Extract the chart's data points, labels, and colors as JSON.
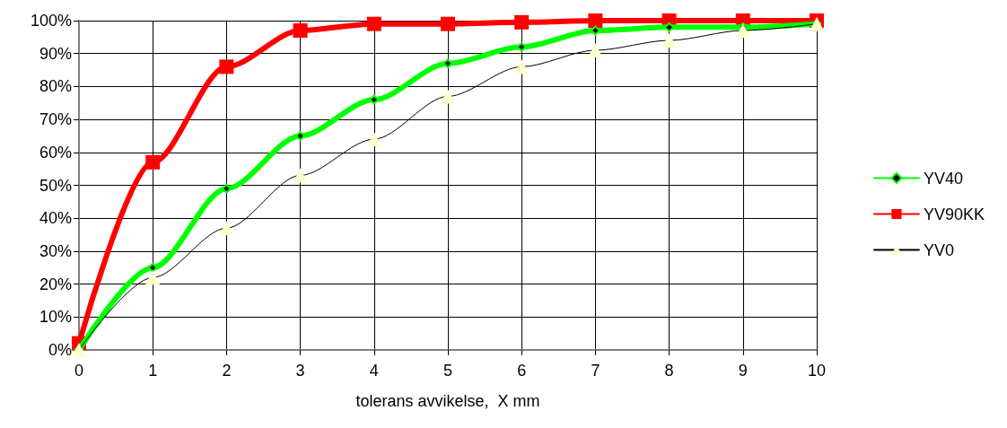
{
  "chart_data": {
    "type": "line",
    "xlabel": "tolerans avvikelse,  X mm",
    "x": [
      0,
      1,
      2,
      3,
      4,
      5,
      6,
      7,
      8,
      9,
      10
    ],
    "series": [
      {
        "name": "YV40",
        "color": "#00ff00",
        "marker": "diamond",
        "values": [
          0,
          25,
          49,
          65,
          76,
          87,
          92,
          97,
          98,
          98,
          99
        ]
      },
      {
        "name": "YV90KK",
        "color": "#ff0000",
        "marker": "square",
        "values": [
          2,
          57,
          86,
          97,
          99,
          99,
          99.5,
          100,
          100,
          100,
          100
        ]
      },
      {
        "name": "YV0",
        "color": "#000000",
        "marker": "triangle",
        "values": [
          0,
          22,
          37,
          53,
          64,
          77,
          86,
          91,
          94,
          97,
          99
        ]
      }
    ],
    "xlim": [
      0,
      10
    ],
    "xticks": [
      0,
      1,
      2,
      3,
      4,
      5,
      6,
      7,
      8,
      9,
      10
    ],
    "ylim": [
      0,
      100
    ],
    "yticks": [
      {
        "value": 0,
        "label": "0%"
      },
      {
        "value": 10,
        "label": "10%"
      },
      {
        "value": 20,
        "label": "20%"
      },
      {
        "value": 30,
        "label": "30%"
      },
      {
        "value": 40,
        "label": "40%"
      },
      {
        "value": 50,
        "label": "50%"
      },
      {
        "value": 60,
        "label": "60%"
      },
      {
        "value": 70,
        "label": "70%"
      },
      {
        "value": 80,
        "label": "80%"
      },
      {
        "value": 90,
        "label": "90%"
      },
      {
        "value": 100,
        "label": "100%"
      }
    ],
    "grid": true,
    "legend": "right",
    "line_style": "solid"
  }
}
